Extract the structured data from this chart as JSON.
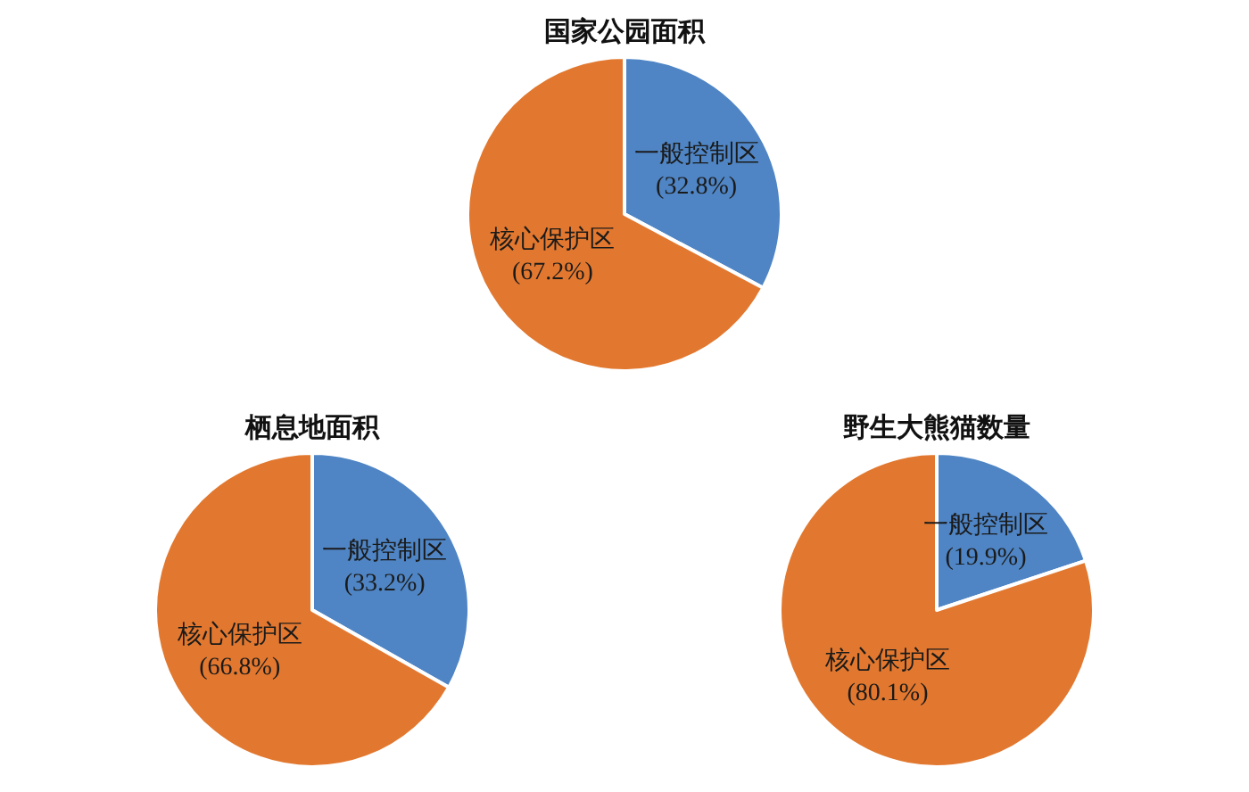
{
  "chart_data": [
    {
      "type": "pie",
      "title": "国家公园面积",
      "categories": [
        "一般控制区",
        "核心保护区"
      ],
      "values": [
        32.8,
        67.2
      ],
      "value_labels": [
        "(32.8%)",
        "(67.2%)"
      ],
      "colors": [
        "#4f85c4",
        "#e2782f"
      ]
    },
    {
      "type": "pie",
      "title": "栖息地面积",
      "categories": [
        "一般控制区",
        "核心保护区"
      ],
      "values": [
        33.2,
        66.8
      ],
      "value_labels": [
        "(33.2%)",
        "(66.8%)"
      ],
      "colors": [
        "#4f85c4",
        "#e2782f"
      ]
    },
    {
      "type": "pie",
      "title": "野生大熊猫数量",
      "categories": [
        "一般控制区",
        "核心保护区"
      ],
      "values": [
        19.9,
        80.1
      ],
      "value_labels": [
        "(19.9%)",
        "(80.1%)"
      ],
      "colors": [
        "#4f85c4",
        "#e2782f"
      ]
    }
  ]
}
